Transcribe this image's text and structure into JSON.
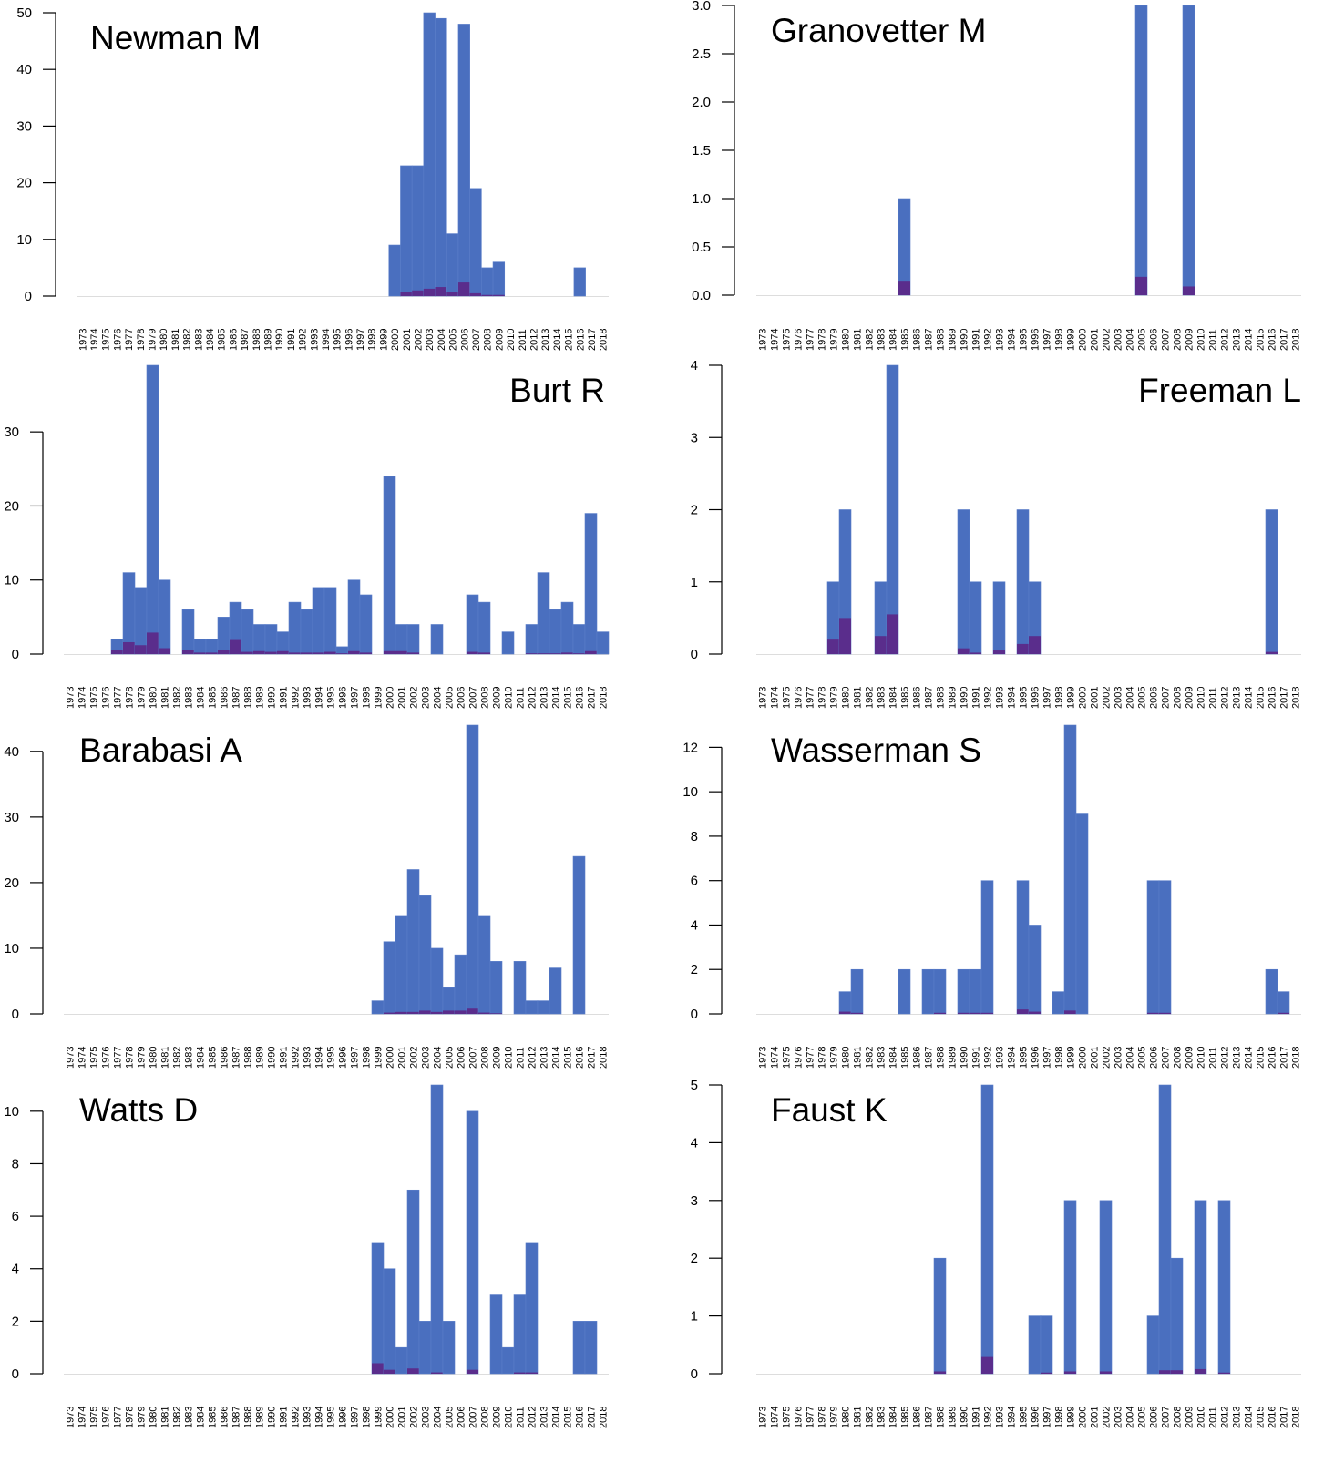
{
  "colors": {
    "total": "#4a6fbf",
    "highlight": "#5a2d8c",
    "axis": "#000000",
    "baseline": "#dddddd"
  },
  "years": [
    "1973",
    "1974",
    "1975",
    "1976",
    "1977",
    "1978",
    "1979",
    "1980",
    "1981",
    "1982",
    "1983",
    "1984",
    "1985",
    "1986",
    "1987",
    "1988",
    "1989",
    "1990",
    "1991",
    "1992",
    "1993",
    "1994",
    "1995",
    "1996",
    "1997",
    "1998",
    "1999",
    "2000",
    "2001",
    "2002",
    "2003",
    "2004",
    "2005",
    "2006",
    "2007",
    "2008",
    "2009",
    "2010",
    "2011",
    "2012",
    "2013",
    "2014",
    "2015",
    "2016",
    "2017",
    "2018"
  ],
  "chart_data": [
    {
      "type": "bar",
      "title": "Newman M",
      "title_position": "top-left",
      "ylim": [
        0,
        50
      ],
      "yticks": [
        0,
        10,
        20,
        30,
        40,
        50
      ],
      "ytick_labels": [
        "0",
        "10",
        "20",
        "30",
        "40",
        "50"
      ],
      "bars": [
        {
          "year": "2000",
          "total": 9,
          "highlight": 0
        },
        {
          "year": "2001",
          "total": 23,
          "highlight": 0.8
        },
        {
          "year": "2002",
          "total": 23,
          "highlight": 1
        },
        {
          "year": "2003",
          "total": 50,
          "highlight": 1.3
        },
        {
          "year": "2004",
          "total": 49,
          "highlight": 1.6
        },
        {
          "year": "2005",
          "total": 11,
          "highlight": 0.8
        },
        {
          "year": "2006",
          "total": 48,
          "highlight": 2.4
        },
        {
          "year": "2007",
          "total": 19,
          "highlight": 0.5
        },
        {
          "year": "2008",
          "total": 5,
          "highlight": 0.2
        },
        {
          "year": "2009",
          "total": 6,
          "highlight": 0.2
        },
        {
          "year": "2016",
          "total": 5,
          "highlight": 0
        }
      ]
    },
    {
      "type": "bar",
      "title": "Granovetter M",
      "title_position": "top-left",
      "ylim": [
        0,
        3
      ],
      "yticks": [
        0,
        0.5,
        1,
        1.5,
        2,
        2.5,
        3
      ],
      "ytick_labels": [
        "0.0",
        "0.5",
        "1.0",
        "1.5",
        "2.0",
        "2.5",
        "3.0"
      ],
      "bars": [
        {
          "year": "1985",
          "total": 1,
          "highlight": 0.14
        },
        {
          "year": "2005",
          "total": 3,
          "highlight": 0.19
        },
        {
          "year": "2009",
          "total": 3,
          "highlight": 0.09
        }
      ]
    },
    {
      "type": "bar",
      "title": "Burt R",
      "title_position": "top-right",
      "ylim": [
        0,
        39
      ],
      "yticks": [
        0,
        10,
        20,
        30
      ],
      "ytick_labels": [
        "0",
        "10",
        "20",
        "30"
      ],
      "bars": [
        {
          "year": "1977",
          "total": 2,
          "highlight": 0.6
        },
        {
          "year": "1978",
          "total": 11,
          "highlight": 1.6
        },
        {
          "year": "1979",
          "total": 9,
          "highlight": 1.2
        },
        {
          "year": "1980",
          "total": 39,
          "highlight": 2.9
        },
        {
          "year": "1981",
          "total": 10,
          "highlight": 0.8
        },
        {
          "year": "1983",
          "total": 6,
          "highlight": 0.6
        },
        {
          "year": "1984",
          "total": 2,
          "highlight": 0.2
        },
        {
          "year": "1985",
          "total": 2,
          "highlight": 0.2
        },
        {
          "year": "1986",
          "total": 5,
          "highlight": 0.6
        },
        {
          "year": "1987",
          "total": 7,
          "highlight": 1.9
        },
        {
          "year": "1988",
          "total": 6,
          "highlight": 0.3
        },
        {
          "year": "1989",
          "total": 4,
          "highlight": 0.4
        },
        {
          "year": "1990",
          "total": 4,
          "highlight": 0.3
        },
        {
          "year": "1991",
          "total": 3,
          "highlight": 0.4
        },
        {
          "year": "1992",
          "total": 7,
          "highlight": 0.2
        },
        {
          "year": "1993",
          "total": 6,
          "highlight": 0.2
        },
        {
          "year": "1994",
          "total": 9,
          "highlight": 0.2
        },
        {
          "year": "1995",
          "total": 9,
          "highlight": 0.3
        },
        {
          "year": "1996",
          "total": 1,
          "highlight": 0.1
        },
        {
          "year": "1997",
          "total": 10,
          "highlight": 0.4
        },
        {
          "year": "1998",
          "total": 8,
          "highlight": 0.2
        },
        {
          "year": "2000",
          "total": 24,
          "highlight": 0.4
        },
        {
          "year": "2001",
          "total": 4,
          "highlight": 0.4
        },
        {
          "year": "2002",
          "total": 4,
          "highlight": 0.2
        },
        {
          "year": "2004",
          "total": 4,
          "highlight": 0
        },
        {
          "year": "2007",
          "total": 8,
          "highlight": 0.3
        },
        {
          "year": "2008",
          "total": 7,
          "highlight": 0.2
        },
        {
          "year": "2010",
          "total": 3,
          "highlight": 0
        },
        {
          "year": "2012",
          "total": 4,
          "highlight": 0.1
        },
        {
          "year": "2013",
          "total": 11,
          "highlight": 0.1
        },
        {
          "year": "2014",
          "total": 6,
          "highlight": 0.1
        },
        {
          "year": "2015",
          "total": 7,
          "highlight": 0.2
        },
        {
          "year": "2016",
          "total": 4,
          "highlight": 0.1
        },
        {
          "year": "2017",
          "total": 19,
          "highlight": 0.4
        },
        {
          "year": "2018",
          "total": 3,
          "highlight": 0
        }
      ]
    },
    {
      "type": "bar",
      "title": "Freeman L",
      "title_position": "top-right",
      "ylim": [
        0,
        4
      ],
      "yticks": [
        0,
        1,
        2,
        3,
        4
      ],
      "ytick_labels": [
        "0",
        "1",
        "2",
        "3",
        "4"
      ],
      "bars": [
        {
          "year": "1979",
          "total": 1,
          "highlight": 0.2
        },
        {
          "year": "1980",
          "total": 2,
          "highlight": 0.5
        },
        {
          "year": "1983",
          "total": 1,
          "highlight": 0.25
        },
        {
          "year": "1984",
          "total": 4,
          "highlight": 0.55
        },
        {
          "year": "1990",
          "total": 2,
          "highlight": 0.08
        },
        {
          "year": "1991",
          "total": 1,
          "highlight": 0.02
        },
        {
          "year": "1993",
          "total": 1,
          "highlight": 0.05
        },
        {
          "year": "1995",
          "total": 2,
          "highlight": 0.14
        },
        {
          "year": "1996",
          "total": 1,
          "highlight": 0.25
        },
        {
          "year": "2016",
          "total": 2,
          "highlight": 0.03
        }
      ]
    },
    {
      "type": "bar",
      "title": "Barabasi A",
      "title_position": "top-left",
      "ylim": [
        0,
        44
      ],
      "yticks": [
        0,
        10,
        20,
        30,
        40
      ],
      "ytick_labels": [
        "0",
        "10",
        "20",
        "30",
        "40"
      ],
      "bars": [
        {
          "year": "1999",
          "total": 2,
          "highlight": 0
        },
        {
          "year": "2000",
          "total": 11,
          "highlight": 0.2
        },
        {
          "year": "2001",
          "total": 15,
          "highlight": 0.3
        },
        {
          "year": "2002",
          "total": 22,
          "highlight": 0.3
        },
        {
          "year": "2003",
          "total": 18,
          "highlight": 0.5
        },
        {
          "year": "2004",
          "total": 10,
          "highlight": 0.3
        },
        {
          "year": "2005",
          "total": 4,
          "highlight": 0.5
        },
        {
          "year": "2006",
          "total": 9,
          "highlight": 0.5
        },
        {
          "year": "2007",
          "total": 44,
          "highlight": 0.8
        },
        {
          "year": "2008",
          "total": 15,
          "highlight": 0.2
        },
        {
          "year": "2009",
          "total": 8,
          "highlight": 0.1
        },
        {
          "year": "2011",
          "total": 8,
          "highlight": 0
        },
        {
          "year": "2012",
          "total": 2,
          "highlight": 0
        },
        {
          "year": "2013",
          "total": 2,
          "highlight": 0
        },
        {
          "year": "2014",
          "total": 7,
          "highlight": 0
        },
        {
          "year": "2016",
          "total": 24,
          "highlight": 0
        }
      ]
    },
    {
      "type": "bar",
      "title": "Wasserman S",
      "title_position": "top-left",
      "ylim": [
        0,
        13
      ],
      "yticks": [
        0,
        2,
        4,
        6,
        8,
        10,
        12
      ],
      "ytick_labels": [
        "0",
        "2",
        "4",
        "6",
        "8",
        "10",
        "12"
      ],
      "bars": [
        {
          "year": "1980",
          "total": 1,
          "highlight": 0.1
        },
        {
          "year": "1981",
          "total": 2,
          "highlight": 0.05
        },
        {
          "year": "1985",
          "total": 2,
          "highlight": 0
        },
        {
          "year": "1987",
          "total": 2,
          "highlight": 0
        },
        {
          "year": "1988",
          "total": 2,
          "highlight": 0.05
        },
        {
          "year": "1990",
          "total": 2,
          "highlight": 0.05
        },
        {
          "year": "1991",
          "total": 2,
          "highlight": 0.05
        },
        {
          "year": "1992",
          "total": 6,
          "highlight": 0.05
        },
        {
          "year": "1995",
          "total": 6,
          "highlight": 0.2
        },
        {
          "year": "1996",
          "total": 4,
          "highlight": 0.1
        },
        {
          "year": "1998",
          "total": 1,
          "highlight": 0
        },
        {
          "year": "1999",
          "total": 13,
          "highlight": 0.15
        },
        {
          "year": "2000",
          "total": 9,
          "highlight": 0
        },
        {
          "year": "2006",
          "total": 6,
          "highlight": 0.05
        },
        {
          "year": "2007",
          "total": 6,
          "highlight": 0.05
        },
        {
          "year": "2016",
          "total": 2,
          "highlight": 0
        },
        {
          "year": "2017",
          "total": 1,
          "highlight": 0.05
        }
      ]
    },
    {
      "type": "bar",
      "title": "Watts D",
      "title_position": "top-left",
      "ylim": [
        0,
        11
      ],
      "yticks": [
        0,
        2,
        4,
        6,
        8,
        10
      ],
      "ytick_labels": [
        "0",
        "2",
        "4",
        "6",
        "8",
        "10"
      ],
      "bars": [
        {
          "year": "1999",
          "total": 5,
          "highlight": 0.4
        },
        {
          "year": "2000",
          "total": 4,
          "highlight": 0.15
        },
        {
          "year": "2001",
          "total": 1,
          "highlight": 0
        },
        {
          "year": "2002",
          "total": 7,
          "highlight": 0.2
        },
        {
          "year": "2003",
          "total": 2,
          "highlight": 0
        },
        {
          "year": "2004",
          "total": 11,
          "highlight": 0.05
        },
        {
          "year": "2005",
          "total": 2,
          "highlight": 0
        },
        {
          "year": "2007",
          "total": 10,
          "highlight": 0.15
        },
        {
          "year": "2009",
          "total": 3,
          "highlight": 0
        },
        {
          "year": "2010",
          "total": 1,
          "highlight": 0
        },
        {
          "year": "2011",
          "total": 3,
          "highlight": 0.05
        },
        {
          "year": "2012",
          "total": 5,
          "highlight": 0.05
        },
        {
          "year": "2016",
          "total": 2,
          "highlight": 0
        },
        {
          "year": "2017",
          "total": 2,
          "highlight": 0
        }
      ]
    },
    {
      "type": "bar",
      "title": "Faust K",
      "title_position": "top-left",
      "ylim": [
        0,
        5
      ],
      "yticks": [
        0,
        1,
        2,
        3,
        4,
        5
      ],
      "ytick_labels": [
        "0",
        "1",
        "2",
        "3",
        "4",
        "5"
      ],
      "bars": [
        {
          "year": "1988",
          "total": 2,
          "highlight": 0.04
        },
        {
          "year": "1992",
          "total": 5,
          "highlight": 0.29
        },
        {
          "year": "1996",
          "total": 1,
          "highlight": 0
        },
        {
          "year": "1997",
          "total": 1,
          "highlight": 0.02
        },
        {
          "year": "1999",
          "total": 3,
          "highlight": 0.04
        },
        {
          "year": "2002",
          "total": 3,
          "highlight": 0.04
        },
        {
          "year": "2006",
          "total": 1,
          "highlight": 0
        },
        {
          "year": "2007",
          "total": 5,
          "highlight": 0.06
        },
        {
          "year": "2008",
          "total": 2,
          "highlight": 0.06
        },
        {
          "year": "2010",
          "total": 3,
          "highlight": 0.08
        },
        {
          "year": "2012",
          "total": 3,
          "highlight": 0.02
        }
      ]
    }
  ]
}
